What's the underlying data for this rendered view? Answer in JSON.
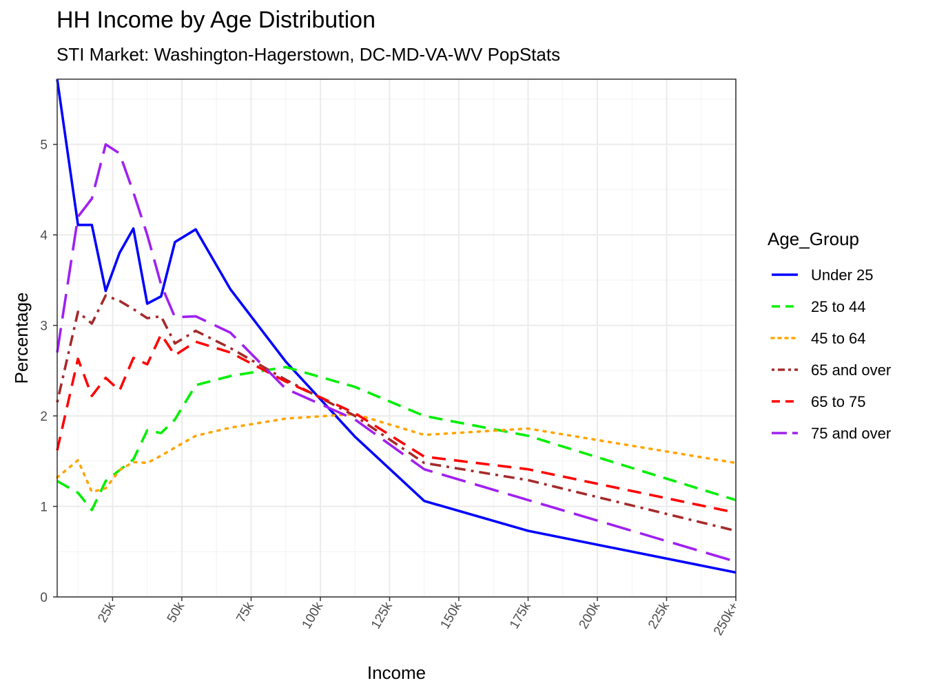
{
  "chart_data": {
    "type": "line",
    "title": "HH Income by Age Distribution",
    "subtitle": "STI Market: Washington-Hagerstown, DC-MD-VA-WV PopStats",
    "xlabel": "Income",
    "ylabel": "Percentage",
    "xlim": [
      5,
      250
    ],
    "ylim": [
      0,
      5.72
    ],
    "x_ticks": [
      {
        "value": 25,
        "label": "25k"
      },
      {
        "value": 50,
        "label": "50k"
      },
      {
        "value": 75,
        "label": "75k"
      },
      {
        "value": 100,
        "label": "100k"
      },
      {
        "value": 125,
        "label": "125k"
      },
      {
        "value": 150,
        "label": "150k"
      },
      {
        "value": 175,
        "label": "175k"
      },
      {
        "value": 200,
        "label": "200k"
      },
      {
        "value": 225,
        "label": "225k"
      },
      {
        "value": 250,
        "label": "250k+"
      }
    ],
    "y_ticks": [
      {
        "value": 0,
        "label": "0"
      },
      {
        "value": 1,
        "label": "1"
      },
      {
        "value": 2,
        "label": "2"
      },
      {
        "value": 3,
        "label": "3"
      },
      {
        "value": 4,
        "label": "4"
      },
      {
        "value": 5,
        "label": "5"
      }
    ],
    "grid": true,
    "legend_title": "Age_Group",
    "legend_position": "right",
    "x": [
      5,
      12.5,
      17.5,
      22.5,
      27.5,
      32.5,
      37.5,
      42.5,
      47.5,
      55,
      67.5,
      87.5,
      112.5,
      137.5,
      175,
      250
    ],
    "series": [
      {
        "name": "Under 25",
        "color": "#0000ff",
        "dash": "solid",
        "values": [
          5.72,
          4.11,
          4.11,
          3.38,
          3.8,
          4.07,
          3.24,
          3.32,
          3.92,
          4.06,
          3.4,
          2.6,
          1.77,
          1.06,
          0.73,
          0.27
        ]
      },
      {
        "name": "25 to 44",
        "color": "#00ee00",
        "dash": "dashed",
        "values": [
          1.28,
          1.15,
          0.96,
          1.28,
          1.4,
          1.52,
          1.84,
          1.81,
          1.96,
          2.34,
          2.44,
          2.54,
          2.32,
          2.0,
          1.78,
          1.07
        ]
      },
      {
        "name": "45 to 64",
        "color": "#ffa500",
        "dash": "dotted",
        "values": [
          1.32,
          1.51,
          1.16,
          1.2,
          1.4,
          1.49,
          1.48,
          1.56,
          1.65,
          1.78,
          1.87,
          1.97,
          2.02,
          1.79,
          1.86,
          1.48
        ]
      },
      {
        "name": "65 and over",
        "color": "#a52a2a",
        "dash": "dotdash",
        "values": [
          2.15,
          3.15,
          3.02,
          3.33,
          3.27,
          3.18,
          3.08,
          3.1,
          2.8,
          2.94,
          2.75,
          2.4,
          2.0,
          1.48,
          1.29,
          0.73
        ]
      },
      {
        "name": "65 to 75",
        "color": "#ff0000",
        "dash": "dashed",
        "values": [
          1.62,
          2.63,
          2.22,
          2.42,
          2.28,
          2.64,
          2.57,
          2.9,
          2.67,
          2.82,
          2.7,
          2.38,
          2.03,
          1.55,
          1.41,
          0.93
        ]
      },
      {
        "name": "75 and over",
        "color": "#a020f0",
        "dash": "longdash",
        "values": [
          2.7,
          4.2,
          4.4,
          5.0,
          4.9,
          4.47,
          4.0,
          3.45,
          3.09,
          3.1,
          2.92,
          2.3,
          1.96,
          1.41,
          1.07,
          0.39
        ]
      }
    ]
  }
}
